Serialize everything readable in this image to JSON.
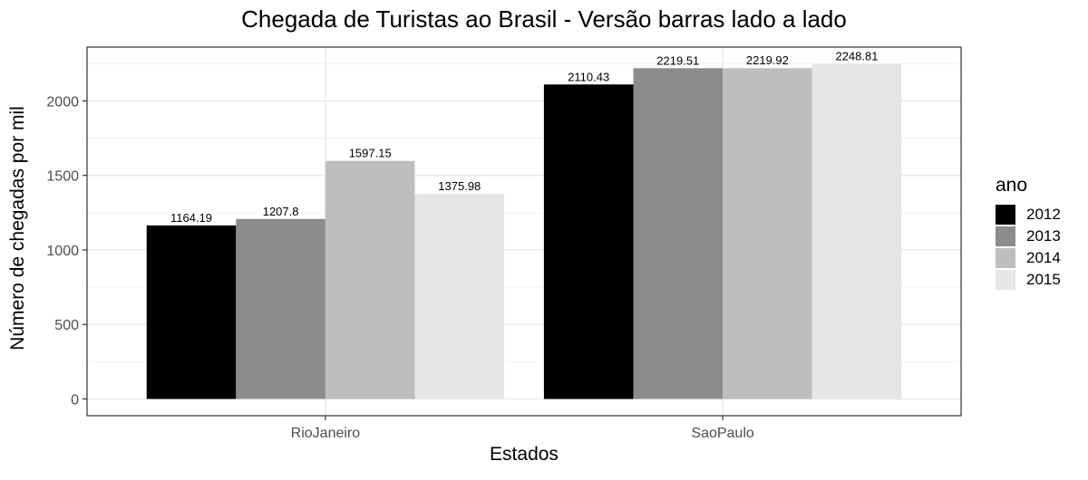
{
  "chart_data": {
    "type": "bar",
    "title": "Chegada de Turistas ao Brasil - Versão barras lado a lado",
    "xlabel": "Estados",
    "ylabel": "Número de chegadas por mil",
    "categories": [
      "RioJaneiro",
      "SaoPaulo"
    ],
    "series": [
      {
        "name": "2012",
        "values": [
          1164.19,
          2110.43
        ],
        "labels": [
          "1164.19",
          "2110.43"
        ],
        "color": "#000000"
      },
      {
        "name": "2013",
        "values": [
          1207.8,
          2219.51
        ],
        "labels": [
          "1207.8",
          "2219.51"
        ],
        "color": "#8c8c8c"
      },
      {
        "name": "2014",
        "values": [
          1597.15,
          2219.92
        ],
        "labels": [
          "1597.15",
          "2219.92"
        ],
        "color": "#bebebe"
      },
      {
        "name": "2015",
        "values": [
          1375.98,
          2248.81
        ],
        "labels": [
          "1375.98",
          "2248.81"
        ],
        "color": "#e6e6e6"
      }
    ],
    "legend_title": "ano",
    "legend_position": "right",
    "yticks": [
      "0",
      "500",
      "1000",
      "1500",
      "2000"
    ],
    "ylim": [
      -112.4,
      2361.2
    ],
    "grid": true
  }
}
